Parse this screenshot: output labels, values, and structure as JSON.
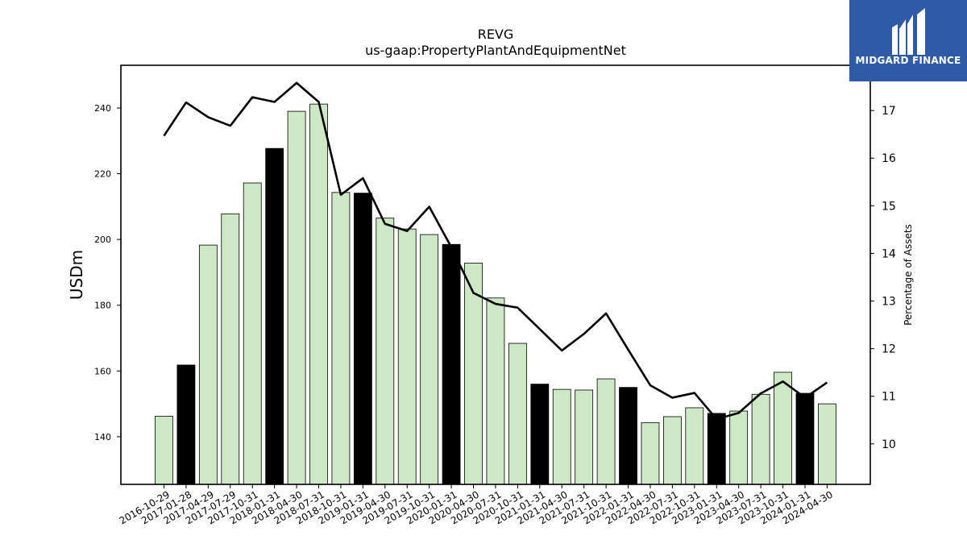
{
  "chart_data": {
    "type": "bar+line",
    "title": "REVG",
    "subtitle": "us-gaap:PropertyPlantAndEquipmentNet",
    "ylabel": "USDm",
    "y2label": "Percentage of Assets",
    "ylim": [
      125.5,
      253
    ],
    "y2lim": [
      9.15,
      17.95
    ],
    "yticks": [
      140,
      160,
      180,
      200,
      220,
      240
    ],
    "y2ticks": [
      10,
      11,
      12,
      13,
      14,
      15,
      16,
      17
    ],
    "categories": [
      "2016-10-29",
      "2017-01-28",
      "2017-04-29",
      "2017-07-29",
      "2017-10-31",
      "2018-01-31",
      "2018-04-30",
      "2018-07-31",
      "2018-10-31",
      "2019-01-31",
      "2019-04-30",
      "2019-07-31",
      "2019-10-31",
      "2020-01-31",
      "2020-04-30",
      "2020-07-31",
      "2020-10-31",
      "2021-01-31",
      "2021-04-30",
      "2021-07-31",
      "2021-10-31",
      "2022-01-31",
      "2022-04-30",
      "2022-07-31",
      "2022-10-31",
      "2023-01-31",
      "2023-04-30",
      "2023-07-31",
      "2023-10-31",
      "2024-01-31",
      "2024-04-30"
    ],
    "series": [
      {
        "kind": "bar",
        "axis": "left",
        "values": [
          146.2,
          161.8,
          198.3,
          207.8,
          217.2,
          227.7,
          239.0,
          241.2,
          214.3,
          214.1,
          206.5,
          203.2,
          201.5,
          198.5,
          192.8,
          182.2,
          168.4,
          156.0,
          154.4,
          154.2,
          157.6,
          155.0,
          144.3,
          146.1,
          148.8,
          147.1,
          147.8,
          152.9,
          159.6,
          153.2,
          150.0
        ],
        "highlight": [
          false,
          true,
          false,
          false,
          false,
          true,
          false,
          false,
          false,
          true,
          false,
          false,
          false,
          true,
          false,
          false,
          false,
          true,
          false,
          false,
          false,
          true,
          false,
          false,
          false,
          true,
          false,
          false,
          false,
          true,
          false
        ]
      },
      {
        "kind": "line",
        "axis": "right",
        "values": [
          16.47,
          17.17,
          16.86,
          16.68,
          17.28,
          17.18,
          17.58,
          17.18,
          15.23,
          15.58,
          14.62,
          14.47,
          14.98,
          14.13,
          13.17,
          12.94,
          12.86,
          12.41,
          11.96,
          12.31,
          12.74,
          11.98,
          11.23,
          10.97,
          11.07,
          10.52,
          10.65,
          11.06,
          11.31,
          10.97,
          11.29
        ]
      }
    ],
    "colors": {
      "bar": "#cce8c4",
      "bar_highlight": "#000000",
      "bar_edge": "#000000",
      "line": "#000000"
    }
  },
  "logo": {
    "text": "MIDGARD FINANCE",
    "bg": "#2e5aa8"
  }
}
